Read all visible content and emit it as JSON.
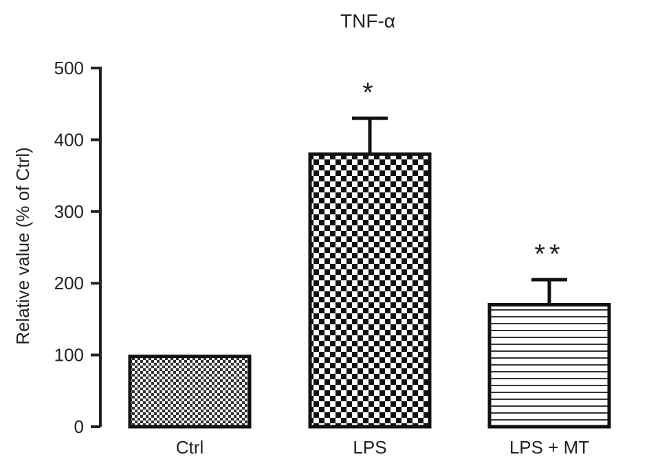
{
  "chart_data": {
    "type": "bar",
    "title": "TNF-α",
    "xlabel": "",
    "ylabel": "Relative value (% of Ctrl)",
    "ylim": [
      0,
      500
    ],
    "yticks": [
      0,
      100,
      200,
      300,
      400,
      500
    ],
    "ytick_labels": [
      "0",
      "100",
      "200",
      "300",
      "400",
      "500"
    ],
    "categories": [
      "Ctrl",
      "LPS",
      "LPS + MT"
    ],
    "values": [
      98,
      380,
      170
    ],
    "error_upper": [
      0,
      50,
      35
    ],
    "significance": [
      "",
      "*",
      "**"
    ],
    "bar_patterns": [
      "fine-checker",
      "coarse-checker",
      "horizontal-stripes"
    ],
    "grid": false,
    "legend": "none",
    "colors": {
      "axis": "#222222",
      "bar_edge": "#111111",
      "pattern_dark": "#111111",
      "pattern_light": "#ffffff"
    }
  }
}
